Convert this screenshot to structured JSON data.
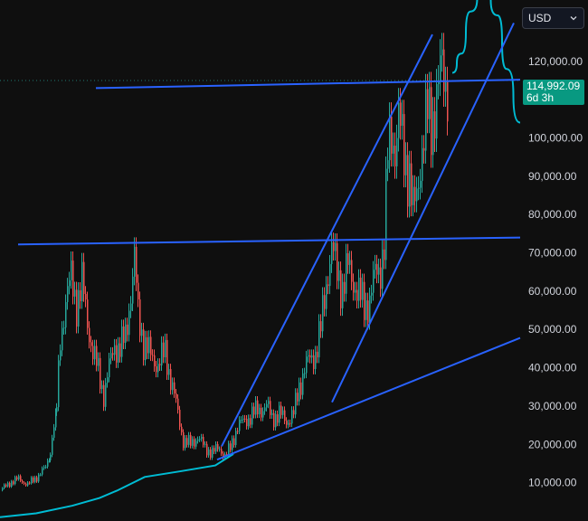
{
  "header": {
    "currency": "USD",
    "currency_icon": "chevron-down-icon"
  },
  "price_badge": {
    "price": "114,992.09",
    "countdown": "6d 3h"
  },
  "colors": {
    "background": "#0f0f0f",
    "up_candle": "#26a69a",
    "down_candle": "#ef5350",
    "trend_line": "#2962ff",
    "moving_average": "#00bcd4",
    "price_badge": "#089981",
    "current_price_line": "#26a69a"
  },
  "chart_data": {
    "type": "line",
    "title": "",
    "xlabel": "",
    "ylabel": "",
    "ylim": [
      0,
      136000
    ],
    "y_ticks": [
      10000,
      20000,
      30000,
      40000,
      50000,
      60000,
      70000,
      80000,
      90000,
      100000,
      120000
    ],
    "y_tick_labels": [
      "10,000.00",
      "20,000.00",
      "30,000.00",
      "40,000.00",
      "50,000.00",
      "60,000.00",
      "70,000.00",
      "80,000.00",
      "90,000.00",
      "100,000.00",
      "120,000.00"
    ],
    "current_price": 114992.09,
    "grid": false,
    "series": [
      {
        "kind": "candles",
        "points": [
          [
            0,
            8000
          ],
          [
            10,
            10000
          ],
          [
            20,
            11000
          ],
          [
            30,
            9500
          ],
          [
            40,
            11500
          ],
          [
            50,
            14000
          ],
          [
            55,
            19000
          ],
          [
            62,
            30000
          ],
          [
            66,
            47000
          ],
          [
            72,
            58000
          ],
          [
            78,
            63000
          ],
          [
            84,
            57000
          ],
          [
            90,
            62000
          ],
          [
            96,
            52000
          ],
          [
            102,
            44000
          ],
          [
            108,
            39000
          ],
          [
            114,
            33000
          ],
          [
            120,
            40000
          ],
          [
            126,
            46000
          ],
          [
            132,
            45000
          ],
          [
            138,
            48000
          ],
          [
            144,
            60000
          ],
          [
            148,
            68000
          ],
          [
            152,
            54000
          ],
          [
            158,
            47000
          ],
          [
            166,
            43000
          ],
          [
            174,
            41000
          ],
          [
            182,
            44000
          ],
          [
            190,
            35000
          ],
          [
            196,
            28000
          ],
          [
            202,
            21000
          ],
          [
            210,
            20000
          ],
          [
            218,
            22000
          ],
          [
            226,
            19000
          ],
          [
            234,
            18000
          ],
          [
            242,
            19000
          ],
          [
            248,
            17000
          ],
          [
            254,
            19000
          ],
          [
            262,
            25000
          ],
          [
            270,
            26000
          ],
          [
            278,
            28000
          ],
          [
            286,
            29000
          ],
          [
            294,
            30000
          ],
          [
            300,
            27000
          ],
          [
            308,
            28000
          ],
          [
            316,
            26000
          ],
          [
            324,
            28000
          ],
          [
            330,
            35000
          ],
          [
            336,
            40000
          ],
          [
            342,
            42000
          ],
          [
            348,
            44000
          ],
          [
            354,
            50000
          ],
          [
            358,
            58000
          ],
          [
            362,
            66000
          ],
          [
            366,
            71000
          ],
          [
            372,
            65000
          ],
          [
            378,
            61000
          ],
          [
            384,
            66000
          ],
          [
            390,
            63000
          ],
          [
            396,
            59000
          ],
          [
            402,
            56000
          ],
          [
            408,
            58000
          ],
          [
            414,
            64000
          ],
          [
            420,
            67000
          ],
          [
            424,
            72000
          ],
          [
            428,
            95000
          ],
          [
            432,
            102000
          ],
          [
            436,
            98000
          ],
          [
            440,
            104000
          ],
          [
            446,
            96000
          ],
          [
            452,
            90000
          ],
          [
            456,
            80000
          ],
          [
            460,
            85000
          ],
          [
            464,
            95000
          ],
          [
            468,
            100000
          ],
          [
            472,
            106000
          ],
          [
            476,
            104000
          ],
          [
            480,
            109000
          ],
          [
            484,
            113000
          ],
          [
            488,
            118000
          ],
          [
            492,
            115000
          ],
          [
            496,
            116000
          ]
        ]
      },
      {
        "kind": "moving_average",
        "points": [
          [
            0,
            1000
          ],
          [
            40,
            2000
          ],
          [
            80,
            4000
          ],
          [
            110,
            6000
          ],
          [
            130,
            8000
          ],
          [
            160,
            11500
          ],
          [
            200,
            13000
          ],
          [
            238,
            14500
          ],
          [
            258,
            17500
          ]
        ]
      },
      {
        "kind": "projection",
        "points": [
          [
            500,
            117000
          ],
          [
            510,
            122000
          ],
          [
            520,
            133000
          ],
          [
            535,
            140000
          ],
          [
            550,
            132000
          ],
          [
            560,
            118000
          ],
          [
            575,
            104000
          ]
        ]
      }
    ],
    "trend_lines": [
      [
        [
          106,
          113000
        ],
        [
          575,
          115200
        ]
      ],
      [
        [
          20,
          72200
        ],
        [
          575,
          74000
        ]
      ],
      [
        [
          240,
          16000
        ],
        [
          575,
          47800
        ]
      ],
      [
        [
          245,
          19500
        ],
        [
          478,
          127000
        ]
      ],
      [
        [
          367,
          31000
        ],
        [
          568,
          130000
        ]
      ]
    ],
    "legend": "none"
  }
}
